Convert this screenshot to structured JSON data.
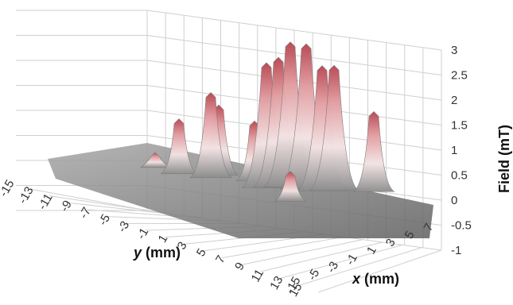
{
  "chart_data": {
    "type": "surface",
    "title": "",
    "xlabel": {
      "var": "x",
      "unit": " (mm)"
    },
    "ylabel": {
      "var": "y",
      "unit": " (mm)"
    },
    "zlabel": "Field (mT)",
    "x_ticks": [
      "-15",
      "-5",
      "-3",
      "-1",
      "1",
      "3",
      "5",
      "7"
    ],
    "y_ticks": [
      "-15",
      "-13",
      "-11",
      "-9",
      "-7",
      "-5",
      "-3",
      "-1",
      "1",
      "3",
      "5",
      "7",
      "9",
      "11",
      "13",
      "15"
    ],
    "z_ticks": [
      "-1",
      "-0.5",
      "0",
      "0.5",
      "1",
      "1.5",
      "2",
      "2.5",
      "3"
    ],
    "zlim": [
      -1,
      3
    ],
    "grid": true,
    "legend": "none",
    "colors": {
      "peak": "#c2545a",
      "mid": "#e7c8ca",
      "base": "#9a9a9a",
      "floor": "#6d6d6d"
    },
    "peaks": [
      {
        "x": -3,
        "y": -2,
        "value": 2.5
      },
      {
        "x": -2,
        "y": -2,
        "value": 2.6
      },
      {
        "x": -1,
        "y": -2,
        "value": 2.9
      },
      {
        "x": 0,
        "y": -1,
        "value": 2.9
      },
      {
        "x": 1,
        "y": 0,
        "value": 2.5
      },
      {
        "x": 2,
        "y": 0,
        "value": 2.5
      },
      {
        "x": 5,
        "y": 1,
        "value": 1.6
      },
      {
        "x": -6,
        "y": -7,
        "value": 1.7
      },
      {
        "x": -5,
        "y": -8,
        "value": 1.4
      },
      {
        "x": -3,
        "y": -5,
        "value": 1.2
      },
      {
        "x": -8,
        "y": -9,
        "value": 1.1
      },
      {
        "x": -9,
        "y": -12,
        "value": 0.3
      },
      {
        "x": -3,
        "y": 4,
        "value": 0.6
      }
    ]
  }
}
